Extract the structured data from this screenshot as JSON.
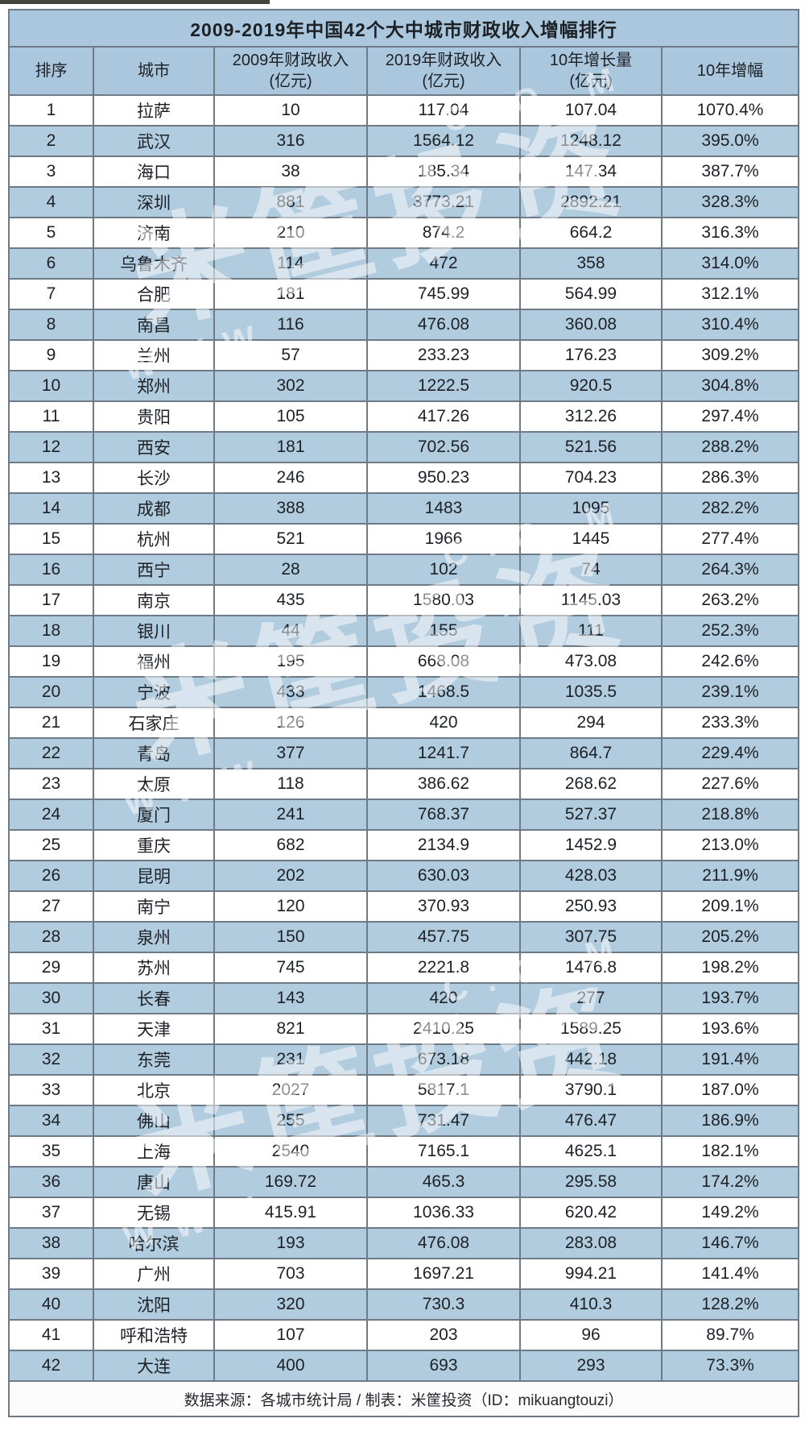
{
  "title": "2009-2019年中国42个大中城市财政收入增幅排行",
  "chart_data": {
    "type": "table",
    "title": "2009-2019年中国42个大中城市财政收入增幅排行",
    "columns": [
      {
        "line1": "排序",
        "line2": ""
      },
      {
        "line1": "城市",
        "line2": ""
      },
      {
        "line1": "2009年财政收入",
        "line2": "(亿元)"
      },
      {
        "line1": "2019年财政收入",
        "line2": "(亿元)"
      },
      {
        "line1": "10年增长量",
        "line2": "(亿元)"
      },
      {
        "line1": "10年增幅",
        "line2": ""
      }
    ],
    "rows": [
      [
        "1",
        "拉萨",
        "10",
        "117.04",
        "107.04",
        "1070.4%"
      ],
      [
        "2",
        "武汉",
        "316",
        "1564.12",
        "1248.12",
        "395.0%"
      ],
      [
        "3",
        "海口",
        "38",
        "185.34",
        "147.34",
        "387.7%"
      ],
      [
        "4",
        "深圳",
        "881",
        "3773.21",
        "2892.21",
        "328.3%"
      ],
      [
        "5",
        "济南",
        "210",
        "874.2",
        "664.2",
        "316.3%"
      ],
      [
        "6",
        "乌鲁木齐",
        "114",
        "472",
        "358",
        "314.0%"
      ],
      [
        "7",
        "合肥",
        "181",
        "745.99",
        "564.99",
        "312.1%"
      ],
      [
        "8",
        "南昌",
        "116",
        "476.08",
        "360.08",
        "310.4%"
      ],
      [
        "9",
        "兰州",
        "57",
        "233.23",
        "176.23",
        "309.2%"
      ],
      [
        "10",
        "郑州",
        "302",
        "1222.5",
        "920.5",
        "304.8%"
      ],
      [
        "11",
        "贵阳",
        "105",
        "417.26",
        "312.26",
        "297.4%"
      ],
      [
        "12",
        "西安",
        "181",
        "702.56",
        "521.56",
        "288.2%"
      ],
      [
        "13",
        "长沙",
        "246",
        "950.23",
        "704.23",
        "286.3%"
      ],
      [
        "14",
        "成都",
        "388",
        "1483",
        "1095",
        "282.2%"
      ],
      [
        "15",
        "杭州",
        "521",
        "1966",
        "1445",
        "277.4%"
      ],
      [
        "16",
        "西宁",
        "28",
        "102",
        "74",
        "264.3%"
      ],
      [
        "17",
        "南京",
        "435",
        "1580.03",
        "1145.03",
        "263.2%"
      ],
      [
        "18",
        "银川",
        "44",
        "155",
        "111",
        "252.3%"
      ],
      [
        "19",
        "福州",
        "195",
        "668.08",
        "473.08",
        "242.6%"
      ],
      [
        "20",
        "宁波",
        "433",
        "1468.5",
        "1035.5",
        "239.1%"
      ],
      [
        "21",
        "石家庄",
        "126",
        "420",
        "294",
        "233.3%"
      ],
      [
        "22",
        "青岛",
        "377",
        "1241.7",
        "864.7",
        "229.4%"
      ],
      [
        "23",
        "太原",
        "118",
        "386.62",
        "268.62",
        "227.6%"
      ],
      [
        "24",
        "厦门",
        "241",
        "768.37",
        "527.37",
        "218.8%"
      ],
      [
        "25",
        "重庆",
        "682",
        "2134.9",
        "1452.9",
        "213.0%"
      ],
      [
        "26",
        "昆明",
        "202",
        "630.03",
        "428.03",
        "211.9%"
      ],
      [
        "27",
        "南宁",
        "120",
        "370.93",
        "250.93",
        "209.1%"
      ],
      [
        "28",
        "泉州",
        "150",
        "457.75",
        "307.75",
        "205.2%"
      ],
      [
        "29",
        "苏州",
        "745",
        "2221.8",
        "1476.8",
        "198.2%"
      ],
      [
        "30",
        "长春",
        "143",
        "420",
        "277",
        "193.7%"
      ],
      [
        "31",
        "天津",
        "821",
        "2410.25",
        "1589.25",
        "193.6%"
      ],
      [
        "32",
        "东莞",
        "231",
        "673.18",
        "442.18",
        "191.4%"
      ],
      [
        "33",
        "北京",
        "2027",
        "5817.1",
        "3790.1",
        "187.0%"
      ],
      [
        "34",
        "佛山",
        "255",
        "731.47",
        "476.47",
        "186.9%"
      ],
      [
        "35",
        "上海",
        "2540",
        "7165.1",
        "4625.1",
        "182.1%"
      ],
      [
        "36",
        "唐山",
        "169.72",
        "465.3",
        "295.58",
        "174.2%"
      ],
      [
        "37",
        "无锡",
        "415.91",
        "1036.33",
        "620.42",
        "149.2%"
      ],
      [
        "38",
        "哈尔滨",
        "193",
        "476.08",
        "283.08",
        "146.7%"
      ],
      [
        "39",
        "广州",
        "703",
        "1697.21",
        "994.21",
        "141.4%"
      ],
      [
        "40",
        "沈阳",
        "320",
        "730.3",
        "410.3",
        "128.2%"
      ],
      [
        "41",
        "呼和浩特",
        "107",
        "203",
        "96",
        "89.7%"
      ],
      [
        "42",
        "大连",
        "400",
        "693",
        "293",
        "73.3%"
      ]
    ]
  },
  "footer": {
    "text": "数据来源：各城市统计局 / 制表：米筐投资（ID：mikuangtouzi）"
  },
  "watermark": {
    "brand": "米筐投资",
    "www": "WWW",
    "com": "C.O.M"
  },
  "colors": {
    "header_blue": "#abc7dd",
    "row_blue": "#b1cbdf",
    "row_white": "#ffffff",
    "border_gray": "#6e7a85",
    "text_dark": "#1d2126"
  }
}
